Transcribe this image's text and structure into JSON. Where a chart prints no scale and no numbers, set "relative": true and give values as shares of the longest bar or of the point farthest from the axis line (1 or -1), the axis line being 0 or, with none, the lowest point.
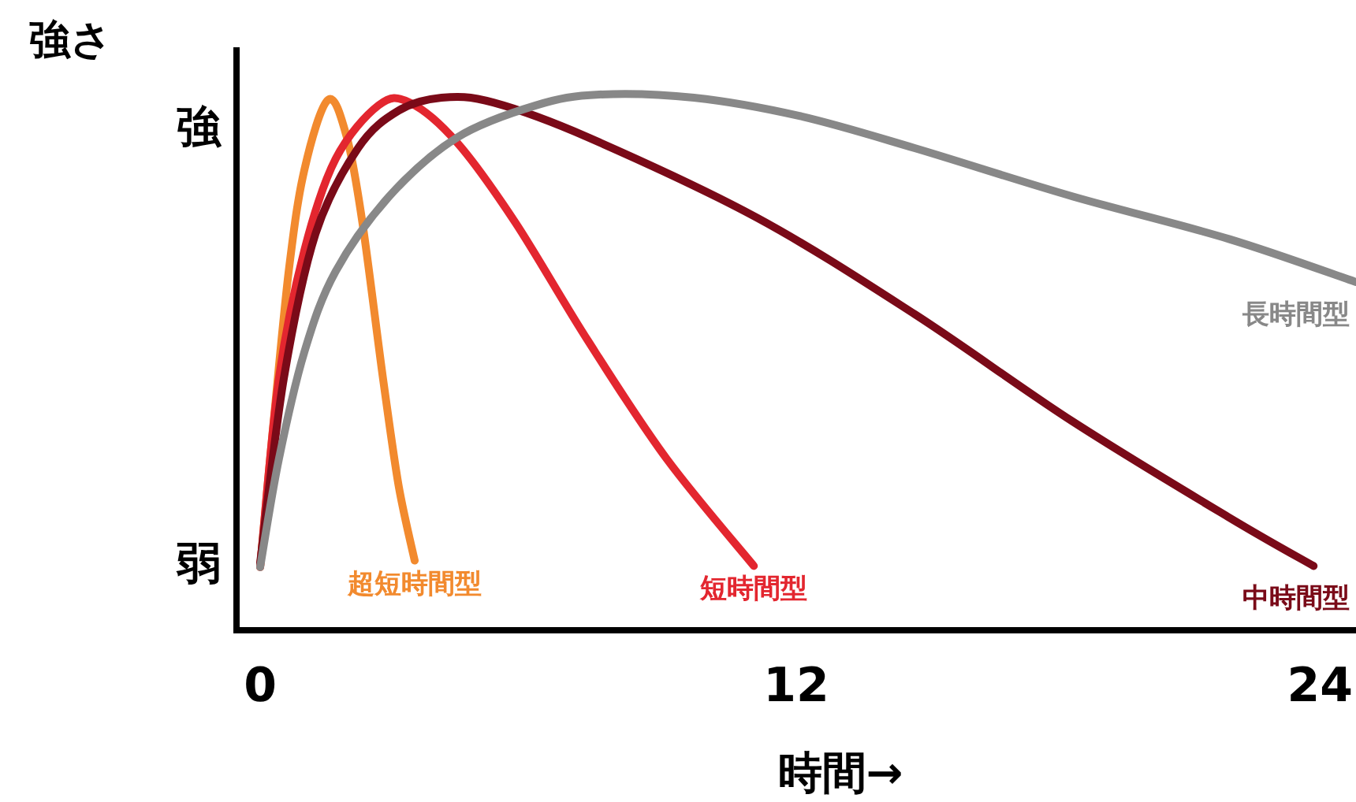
{
  "chart_data": {
    "type": "line",
    "relative": true,
    "ylabel": "強さ",
    "xlabel": "時間→",
    "xlim": [
      -0.53,
      24.53
    ],
    "xticks": [
      0,
      12,
      24
    ],
    "annotations": [
      "強",
      "弱"
    ],
    "grid": false,
    "marker": "none",
    "line_style": "solid",
    "series": [
      {
        "name": "超短時間型",
        "color": "#f28a2e",
        "x": [
          0,
          0.28,
          0.64,
          0.99,
          1.52,
          1.94,
          2.29,
          2.75,
          3.1,
          3.46
        ],
        "values": [
          0.118,
          0.37,
          0.67,
          0.86,
          0.99,
          0.92,
          0.76,
          0.47,
          0.27,
          0.13
        ]
      },
      {
        "name": "短時間型",
        "color": "#e3262f",
        "x": [
          0,
          0.42,
          0.99,
          1.69,
          2.65,
          3.35,
          4.41,
          5.72,
          7.34,
          9.1,
          11.05
        ],
        "values": [
          0.118,
          0.47,
          0.71,
          0.88,
          0.98,
          0.985,
          0.91,
          0.76,
          0.54,
          0.32,
          0.12
        ]
      },
      {
        "name": "中時間型",
        "color": "#7a0a18",
        "x": [
          0,
          0.53,
          1.24,
          2.19,
          3.1,
          4.06,
          5.22,
          7.34,
          11.12,
          14.65,
          18.18,
          21.7,
          23.58
        ],
        "values": [
          0.126,
          0.47,
          0.74,
          0.9,
          0.97,
          0.994,
          0.985,
          0.92,
          0.77,
          0.59,
          0.39,
          0.21,
          0.12
        ]
      },
      {
        "name": "長時間型",
        "color": "#888888",
        "x": [
          0,
          0.42,
          0.99,
          1.69,
          2.89,
          4.41,
          6.18,
          7.59,
          9.71,
          12.07,
          14.65,
          18.18,
          21.7,
          24.53
        ],
        "values": [
          0.118,
          0.32,
          0.52,
          0.67,
          0.81,
          0.92,
          0.98,
          1.0,
          0.994,
          0.96,
          0.9,
          0.81,
          0.73,
          0.65
        ]
      }
    ]
  }
}
